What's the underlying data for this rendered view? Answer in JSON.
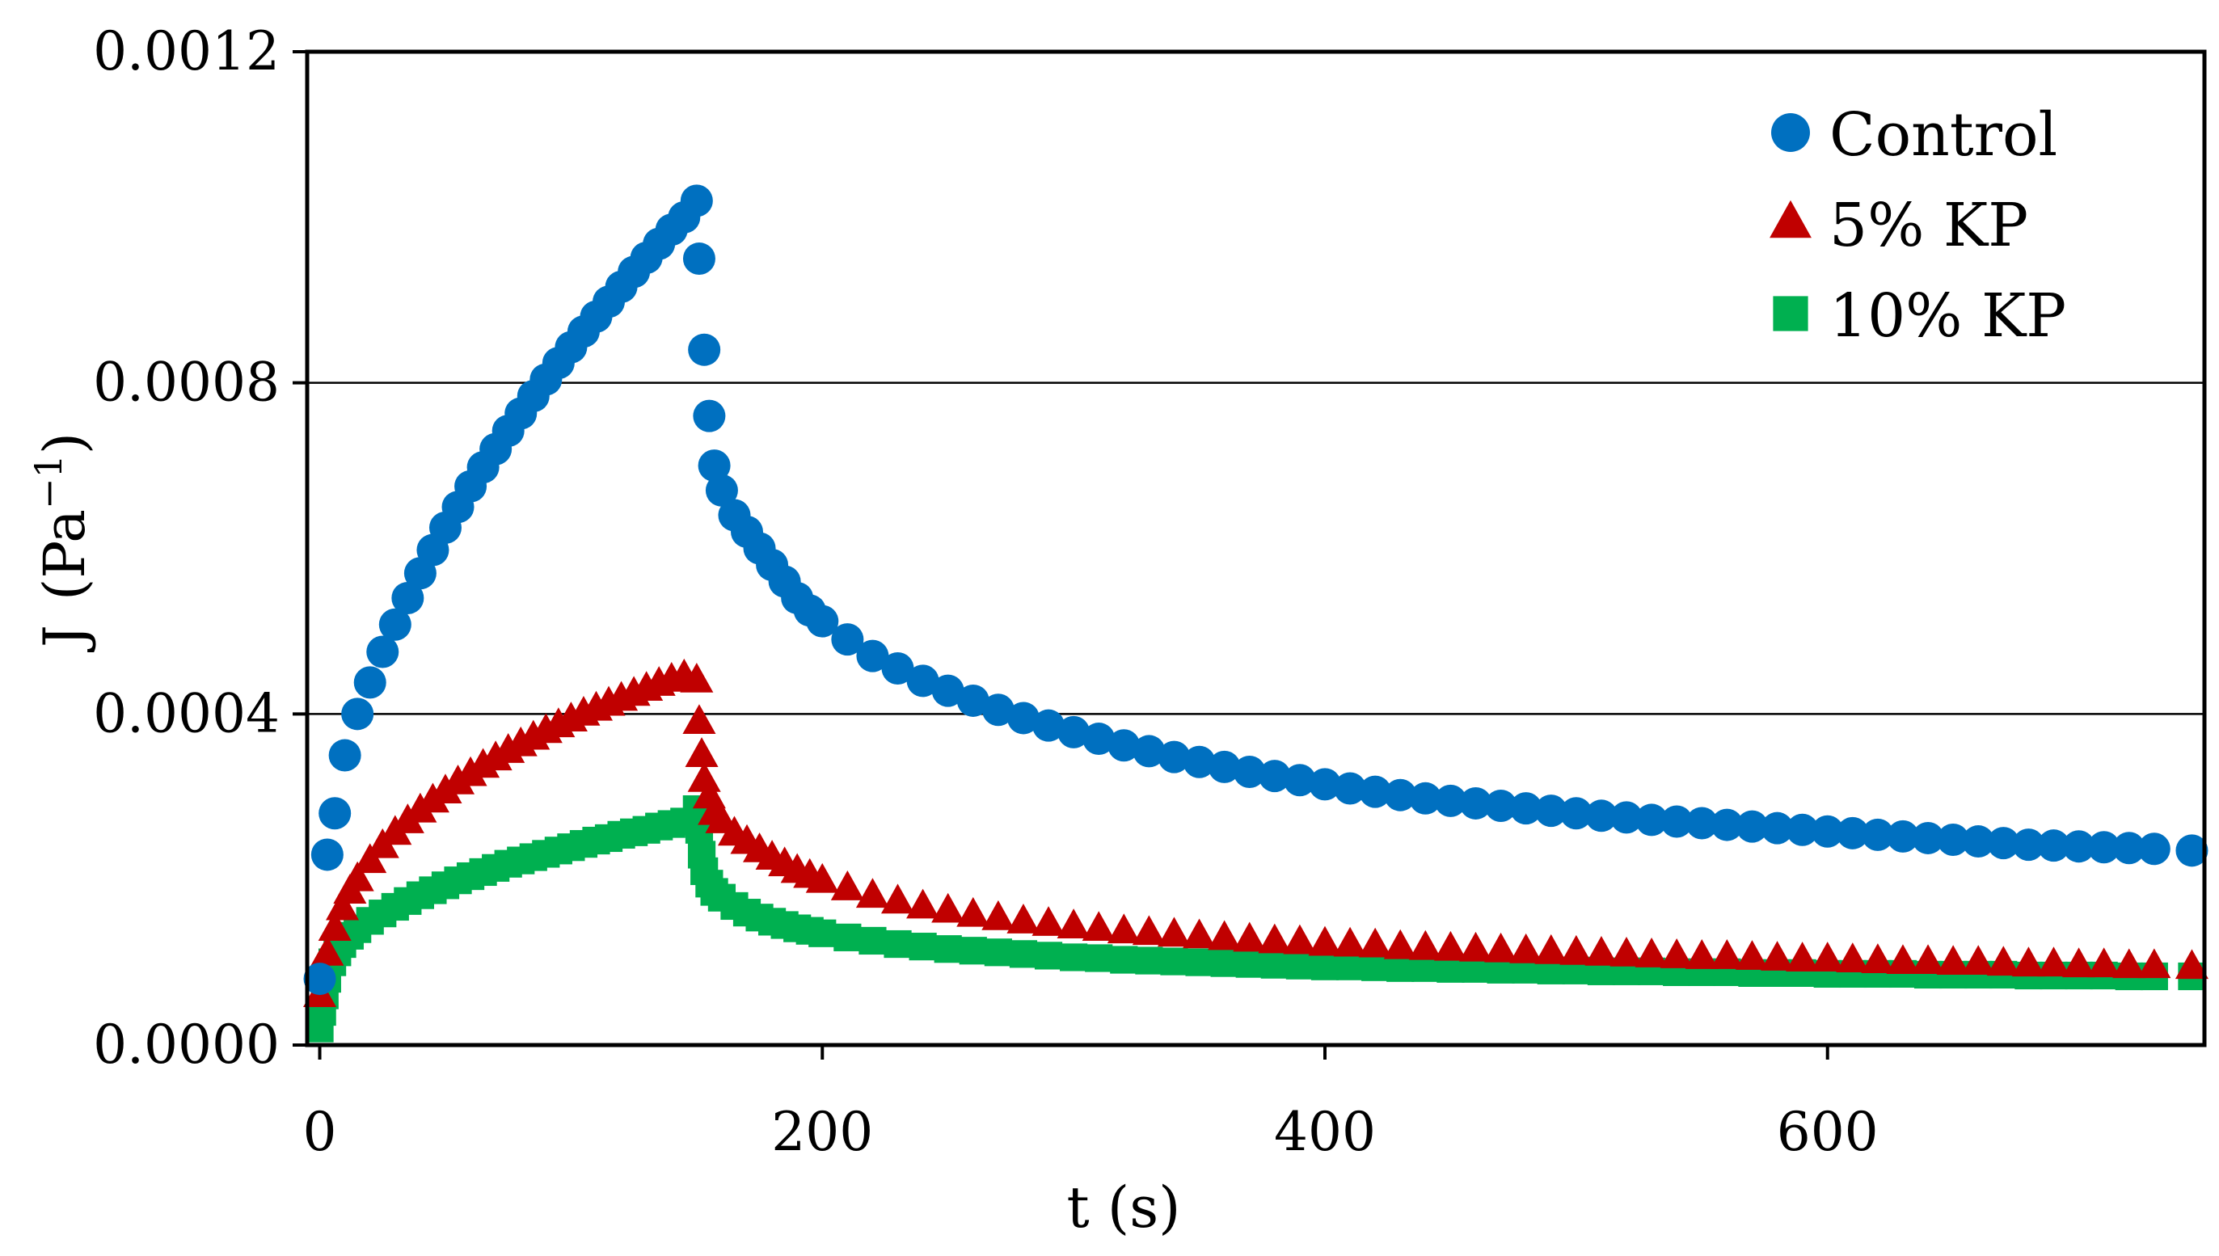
{
  "chart_data": {
    "type": "scatter",
    "title": "",
    "xlabel": "t (s)",
    "ylabel_main": "J",
    "ylabel_unit_open": "(Pa",
    "ylabel_unit_sup": "−1",
    "ylabel_unit_close": ")",
    "xlim": [
      -5,
      750
    ],
    "ylim": [
      0,
      0.0012
    ],
    "x_ticks": [
      {
        "value": 0,
        "label": "0"
      },
      {
        "value": 200,
        "label": "200"
      },
      {
        "value": 400,
        "label": "400"
      },
      {
        "value": 600,
        "label": "600"
      }
    ],
    "y_ticks": [
      {
        "value": 0,
        "label": "0.0000"
      },
      {
        "value": 0.0004,
        "label": "0.0004"
      },
      {
        "value": 0.0008,
        "label": "0.0008"
      },
      {
        "value": 0.0012,
        "label": "0.0012"
      }
    ],
    "gridlines_y": true,
    "legend_position": "top-right",
    "creep_time": 150,
    "series": [
      {
        "name": "Control",
        "marker": "circle",
        "color": "#0070C0",
        "x": [
          0,
          3,
          6,
          10,
          15,
          20,
          25,
          30,
          35,
          40,
          45,
          50,
          55,
          60,
          65,
          70,
          75,
          80,
          85,
          90,
          95,
          100,
          105,
          110,
          115,
          120,
          125,
          130,
          135,
          140,
          145,
          150,
          151,
          153,
          155,
          157,
          160,
          165,
          170,
          175,
          180,
          185,
          190,
          195,
          200,
          210,
          220,
          230,
          240,
          250,
          260,
          270,
          280,
          290,
          300,
          310,
          320,
          330,
          340,
          350,
          360,
          370,
          380,
          390,
          400,
          410,
          420,
          430,
          440,
          450,
          460,
          470,
          480,
          490,
          500,
          510,
          520,
          530,
          540,
          550,
          560,
          570,
          580,
          590,
          600,
          610,
          620,
          630,
          640,
          650,
          660,
          670,
          680,
          690,
          700,
          710,
          720,
          730,
          745
        ],
        "y": [
          8e-05,
          0.00023,
          0.00028,
          0.00035,
          0.0004,
          0.000438,
          0.000475,
          0.000508,
          0.00054,
          0.00057,
          0.000598,
          0.000625,
          0.00065,
          0.000675,
          0.000698,
          0.00072,
          0.000742,
          0.000763,
          0.000784,
          0.000804,
          0.000824,
          0.000843,
          0.000862,
          0.00088,
          0.000898,
          0.000916,
          0.000934,
          0.000951,
          0.000968,
          0.000985,
          0.001,
          0.00102,
          0.00095,
          0.00084,
          0.00076,
          0.0007,
          0.00067,
          0.00064,
          0.00062,
          0.0006,
          0.00058,
          0.00056,
          0.00054,
          0.000525,
          0.000512,
          0.00049,
          0.00047,
          0.000455,
          0.00044,
          0.000428,
          0.000416,
          0.000405,
          0.000395,
          0.000386,
          0.000378,
          0.00037,
          0.000362,
          0.000355,
          0.000348,
          0.000342,
          0.000336,
          0.00033,
          0.000325,
          0.00032,
          0.000315,
          0.00031,
          0.000306,
          0.000302,
          0.000298,
          0.000295,
          0.000292,
          0.000289,
          0.000286,
          0.000283,
          0.00028,
          0.000277,
          0.000275,
          0.000272,
          0.00027,
          0.000268,
          0.000266,
          0.000264,
          0.000262,
          0.00026,
          0.000258,
          0.000256,
          0.000254,
          0.000252,
          0.00025,
          0.000248,
          0.000246,
          0.000244,
          0.000242,
          0.000241,
          0.00024,
          0.000239,
          0.000238,
          0.000237,
          0.000235
        ]
      },
      {
        "name": "5% KP",
        "marker": "triangle",
        "color": "#C00000",
        "x": [
          0,
          3,
          6,
          9,
          12,
          15,
          20,
          25,
          30,
          35,
          40,
          45,
          50,
          55,
          60,
          65,
          70,
          75,
          80,
          85,
          90,
          95,
          100,
          105,
          110,
          115,
          120,
          125,
          130,
          135,
          140,
          145,
          150,
          151,
          152,
          153,
          155,
          157,
          160,
          165,
          170,
          175,
          180,
          185,
          190,
          195,
          200,
          210,
          220,
          230,
          240,
          250,
          260,
          270,
          280,
          290,
          300,
          310,
          320,
          330,
          340,
          350,
          360,
          370,
          380,
          390,
          400,
          410,
          420,
          430,
          440,
          450,
          460,
          470,
          480,
          490,
          500,
          510,
          520,
          530,
          540,
          550,
          560,
          570,
          580,
          590,
          600,
          610,
          620,
          630,
          640,
          650,
          660,
          670,
          680,
          690,
          700,
          710,
          720,
          730,
          745
        ],
        "y": [
          6e-05,
          0.00011,
          0.00014,
          0.000165,
          0.000185,
          0.0002,
          0.000222,
          0.00024,
          0.000256,
          0.00027,
          0.000283,
          0.000295,
          0.000306,
          0.000317,
          0.000327,
          0.000337,
          0.000346,
          0.000355,
          0.000363,
          0.000371,
          0.000379,
          0.000386,
          0.000393,
          0.0004,
          0.000406,
          0.000412,
          0.000418,
          0.000424,
          0.00043,
          0.000436,
          0.000441,
          0.000445,
          0.00044,
          0.00039,
          0.00035,
          0.00032,
          0.0003,
          0.00028,
          0.00027,
          0.000255,
          0.000245,
          0.000235,
          0.000226,
          0.000218,
          0.00021,
          0.000204,
          0.000198,
          0.000189,
          0.00018,
          0.000173,
          0.000167,
          0.000162,
          0.000157,
          0.000153,
          0.000149,
          0.000146,
          0.000143,
          0.00014,
          0.000137,
          0.000135,
          0.000133,
          0.000131,
          0.000129,
          0.000127,
          0.000125,
          0.000124,
          0.000122,
          0.000121,
          0.00012,
          0.000118,
          0.000117,
          0.000116,
          0.000115,
          0.000114,
          0.000113,
          0.000112,
          0.000111,
          0.00011,
          0.000109,
          0.000108,
          0.000107,
          0.000106,
          0.000106,
          0.000105,
          0.000104,
          0.000103,
          0.000103,
          0.000102,
          0.000101,
          0.0001,
          0.0001,
          9.9e-05,
          9.9e-05,
          9.8e-05,
          9.7e-05,
          9.7e-05,
          9.6e-05,
          9.6e-05,
          9.5e-05,
          9.5e-05,
          9.4e-05
        ]
      },
      {
        "name": "10% KP",
        "marker": "square",
        "color": "#00B050",
        "x": [
          0,
          1,
          2,
          3,
          5,
          7,
          9,
          12,
          15,
          20,
          25,
          30,
          35,
          40,
          45,
          50,
          55,
          60,
          65,
          70,
          75,
          80,
          85,
          90,
          95,
          100,
          105,
          110,
          115,
          120,
          125,
          130,
          135,
          140,
          145,
          150,
          151,
          152,
          153,
          155,
          157,
          160,
          165,
          170,
          175,
          180,
          185,
          190,
          195,
          200,
          210,
          220,
          230,
          240,
          250,
          260,
          270,
          280,
          290,
          300,
          310,
          320,
          330,
          340,
          350,
          360,
          370,
          380,
          390,
          400,
          410,
          420,
          430,
          440,
          450,
          460,
          470,
          480,
          490,
          500,
          510,
          520,
          530,
          540,
          550,
          560,
          570,
          580,
          590,
          600,
          610,
          620,
          630,
          640,
          650,
          660,
          670,
          680,
          690,
          700,
          710,
          720,
          730,
          745
        ],
        "y": [
          2e-05,
          4e-05,
          6e-05,
          8e-05,
          0.0001,
          0.000112,
          0.000122,
          0.000132,
          0.00014,
          0.00015,
          0.000159,
          0.000167,
          0.000174,
          0.000181,
          0.000187,
          0.000193,
          0.000199,
          0.000204,
          0.000209,
          0.000214,
          0.000219,
          0.000223,
          0.000227,
          0.000231,
          0.000235,
          0.000239,
          0.000243,
          0.000247,
          0.00025,
          0.000254,
          0.000257,
          0.00026,
          0.000264,
          0.000267,
          0.00027,
          0.000285,
          0.00026,
          0.00023,
          0.00021,
          0.000195,
          0.000185,
          0.000178,
          0.000168,
          0.00016,
          0.000154,
          0.000149,
          0.000145,
          0.000141,
          0.000138,
          0.000135,
          0.00013,
          0.000126,
          0.000122,
          0.000119,
          0.000116,
          0.000114,
          0.000112,
          0.00011,
          0.000108,
          0.000106,
          0.000105,
          0.000103,
          0.000102,
          0.000101,
          0.0001,
          9.9e-05,
          9.8e-05,
          9.7e-05,
          9.6e-05,
          9.5e-05,
          9.5e-05,
          9.4e-05,
          9.3e-05,
          9.3e-05,
          9.2e-05,
          9.2e-05,
          9.1e-05,
          9.1e-05,
          9e-05,
          9e-05,
          8.9e-05,
          8.9e-05,
          8.9e-05,
          8.8e-05,
          8.8e-05,
          8.8e-05,
          8.7e-05,
          8.7e-05,
          8.7e-05,
          8.6e-05,
          8.6e-05,
          8.6e-05,
          8.6e-05,
          8.5e-05,
          8.5e-05,
          8.5e-05,
          8.5e-05,
          8.4e-05,
          8.4e-05,
          8.4e-05,
          8.4e-05,
          8.3e-05,
          8.3e-05,
          8.3e-05
        ]
      }
    ]
  }
}
